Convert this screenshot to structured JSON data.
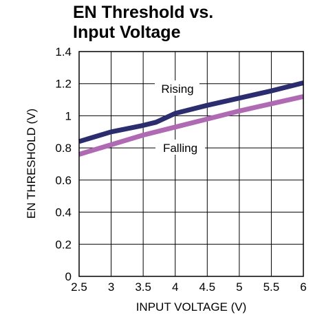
{
  "chart_data": {
    "type": "line",
    "title_line1": "EN Threshold vs.",
    "title_line2": "Input Voltage",
    "xlabel": "INPUT VOLTAGE (V)",
    "ylabel": "EN THRESHOLD (V)",
    "xlim": [
      2.5,
      6
    ],
    "ylim": [
      0,
      1.4
    ],
    "xticks": [
      "2.5",
      "3",
      "3.5",
      "4",
      "4.5",
      "5",
      "5.5",
      "6"
    ],
    "yticks": [
      "0",
      "0.2",
      "0.4",
      "0.6",
      "0.8",
      "1",
      "1.2",
      "1.4"
    ],
    "grid": true,
    "series": [
      {
        "name": "Rising",
        "color": "#2b2d6e",
        "x": [
          2.5,
          3.0,
          3.5,
          3.7,
          4.0,
          4.5,
          5.0,
          5.5,
          6.0
        ],
        "y": [
          0.84,
          0.9,
          0.94,
          0.96,
          1.015,
          1.065,
          1.11,
          1.155,
          1.205
        ]
      },
      {
        "name": "Falling",
        "color": "#b06ab3",
        "x": [
          2.5,
          3.0,
          3.5,
          4.0,
          4.5,
          5.0,
          5.5,
          6.0
        ],
        "y": [
          0.76,
          0.82,
          0.88,
          0.93,
          0.98,
          1.03,
          1.075,
          1.12
        ]
      }
    ]
  }
}
